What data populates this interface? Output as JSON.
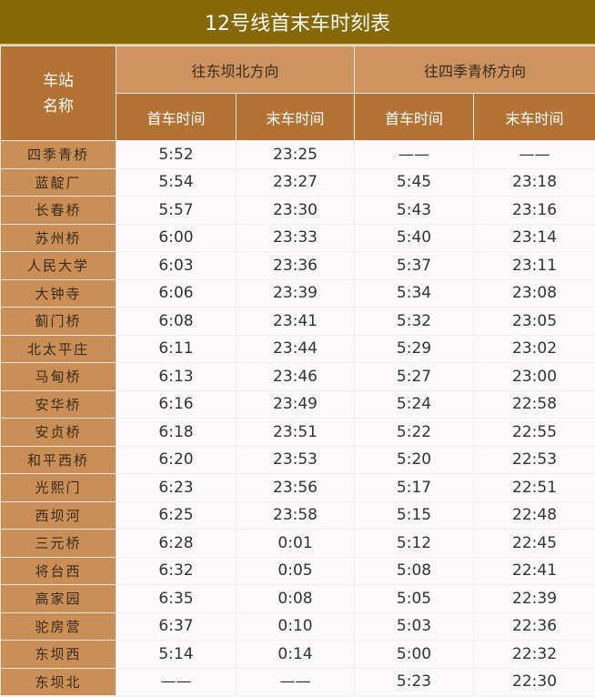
{
  "title": "12号线首末车时刻表",
  "header": {
    "station": "车站\n名称",
    "station_line1": "车站",
    "station_line2": "名称",
    "dir1": "往东坝北方向",
    "dir2": "往四季青桥方向",
    "first": "首车时间",
    "last": "末车时间"
  },
  "colors": {
    "title_bg": "#876807",
    "header_light": "#cd9462",
    "header_dark": "#b27233",
    "station_bg": "#c98f57"
  },
  "rows": [
    [
      "四季青桥",
      "5:52",
      "23:25",
      "——",
      "——"
    ],
    [
      "蓝靛厂",
      "5:54",
      "23:27",
      "5:45",
      "23:18"
    ],
    [
      "长春桥",
      "5:57",
      "23:30",
      "5:43",
      "23:16"
    ],
    [
      "苏州桥",
      "6:00",
      "23:33",
      "5:40",
      "23:14"
    ],
    [
      "人民大学",
      "6:03",
      "23:36",
      "5:37",
      "23:11"
    ],
    [
      "大钟寺",
      "6:06",
      "23:39",
      "5:34",
      "23:08"
    ],
    [
      "蓟门桥",
      "6:08",
      "23:41",
      "5:32",
      "23:05"
    ],
    [
      "北太平庄",
      "6:11",
      "23:44",
      "5:29",
      "23:02"
    ],
    [
      "马甸桥",
      "6:13",
      "23:46",
      "5:27",
      "23:00"
    ],
    [
      "安华桥",
      "6:16",
      "23:49",
      "5:24",
      "22:58"
    ],
    [
      "安贞桥",
      "6:18",
      "23:51",
      "5:22",
      "22:55"
    ],
    [
      "和平西桥",
      "6:20",
      "23:53",
      "5:20",
      "22:53"
    ],
    [
      "光熙门",
      "6:23",
      "23:56",
      "5:17",
      "22:51"
    ],
    [
      "西坝河",
      "6:25",
      "23:58",
      "5:15",
      "22:48"
    ],
    [
      "三元桥",
      "6:28",
      "0:01",
      "5:12",
      "22:45"
    ],
    [
      "将台西",
      "6:32",
      "0:05",
      "5:08",
      "22:41"
    ],
    [
      "高家园",
      "6:35",
      "0:08",
      "5:05",
      "22:39"
    ],
    [
      "驼房营",
      "6:37",
      "0:10",
      "5:03",
      "22:36"
    ],
    [
      "东坝西",
      "5:14",
      "0:14",
      "5:00",
      "22:32"
    ],
    [
      "东坝北",
      "——",
      "——",
      "5:23",
      "22:30"
    ]
  ]
}
